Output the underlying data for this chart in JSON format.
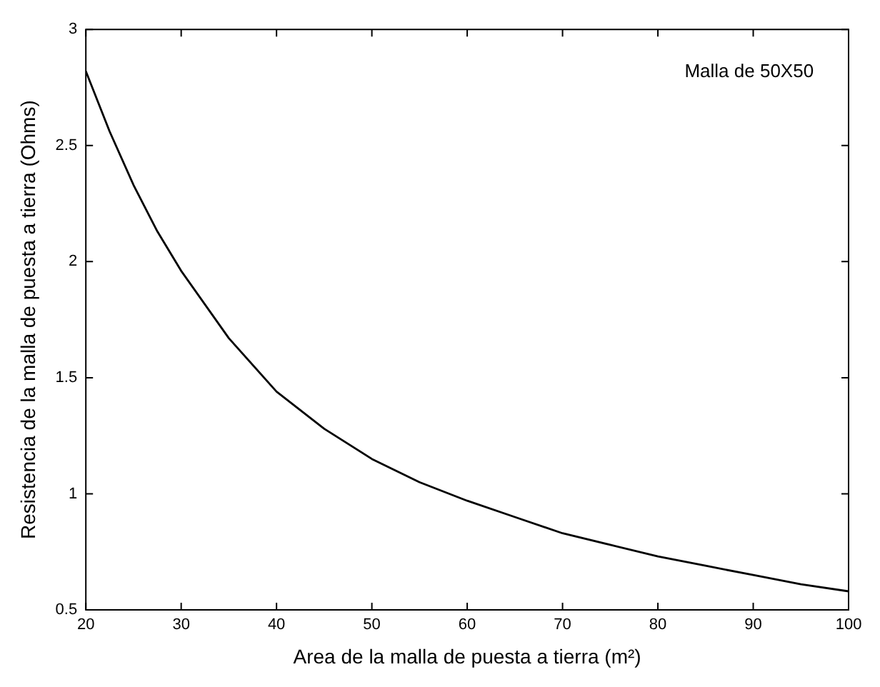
{
  "chart_data": {
    "type": "line",
    "xlabel": "Area de la malla de puesta a tierra (m²)",
    "ylabel": "Resistencia de la malla de puesta a tierra (Ohms)",
    "annotations": [
      "Malla de 50X50"
    ],
    "x": [
      20,
      22.5,
      25,
      27.5,
      30,
      35,
      40,
      45,
      50,
      55,
      60,
      65,
      70,
      75,
      80,
      85,
      90,
      95,
      100
    ],
    "series": [
      {
        "color": "#000000",
        "values": [
          2.82,
          2.56,
          2.33,
          2.13,
          1.96,
          1.67,
          1.44,
          1.28,
          1.15,
          1.05,
          0.97,
          0.9,
          0.83,
          0.78,
          0.73,
          0.69,
          0.65,
          0.61,
          0.58
        ]
      }
    ],
    "xlim": [
      20,
      100
    ],
    "xticks": [
      20,
      30,
      40,
      50,
      60,
      70,
      80,
      90,
      100
    ],
    "ylim": [
      0.5,
      3
    ],
    "yticks": [
      0.5,
      1,
      1.5,
      2,
      2.5,
      3
    ],
    "grid": false
  }
}
